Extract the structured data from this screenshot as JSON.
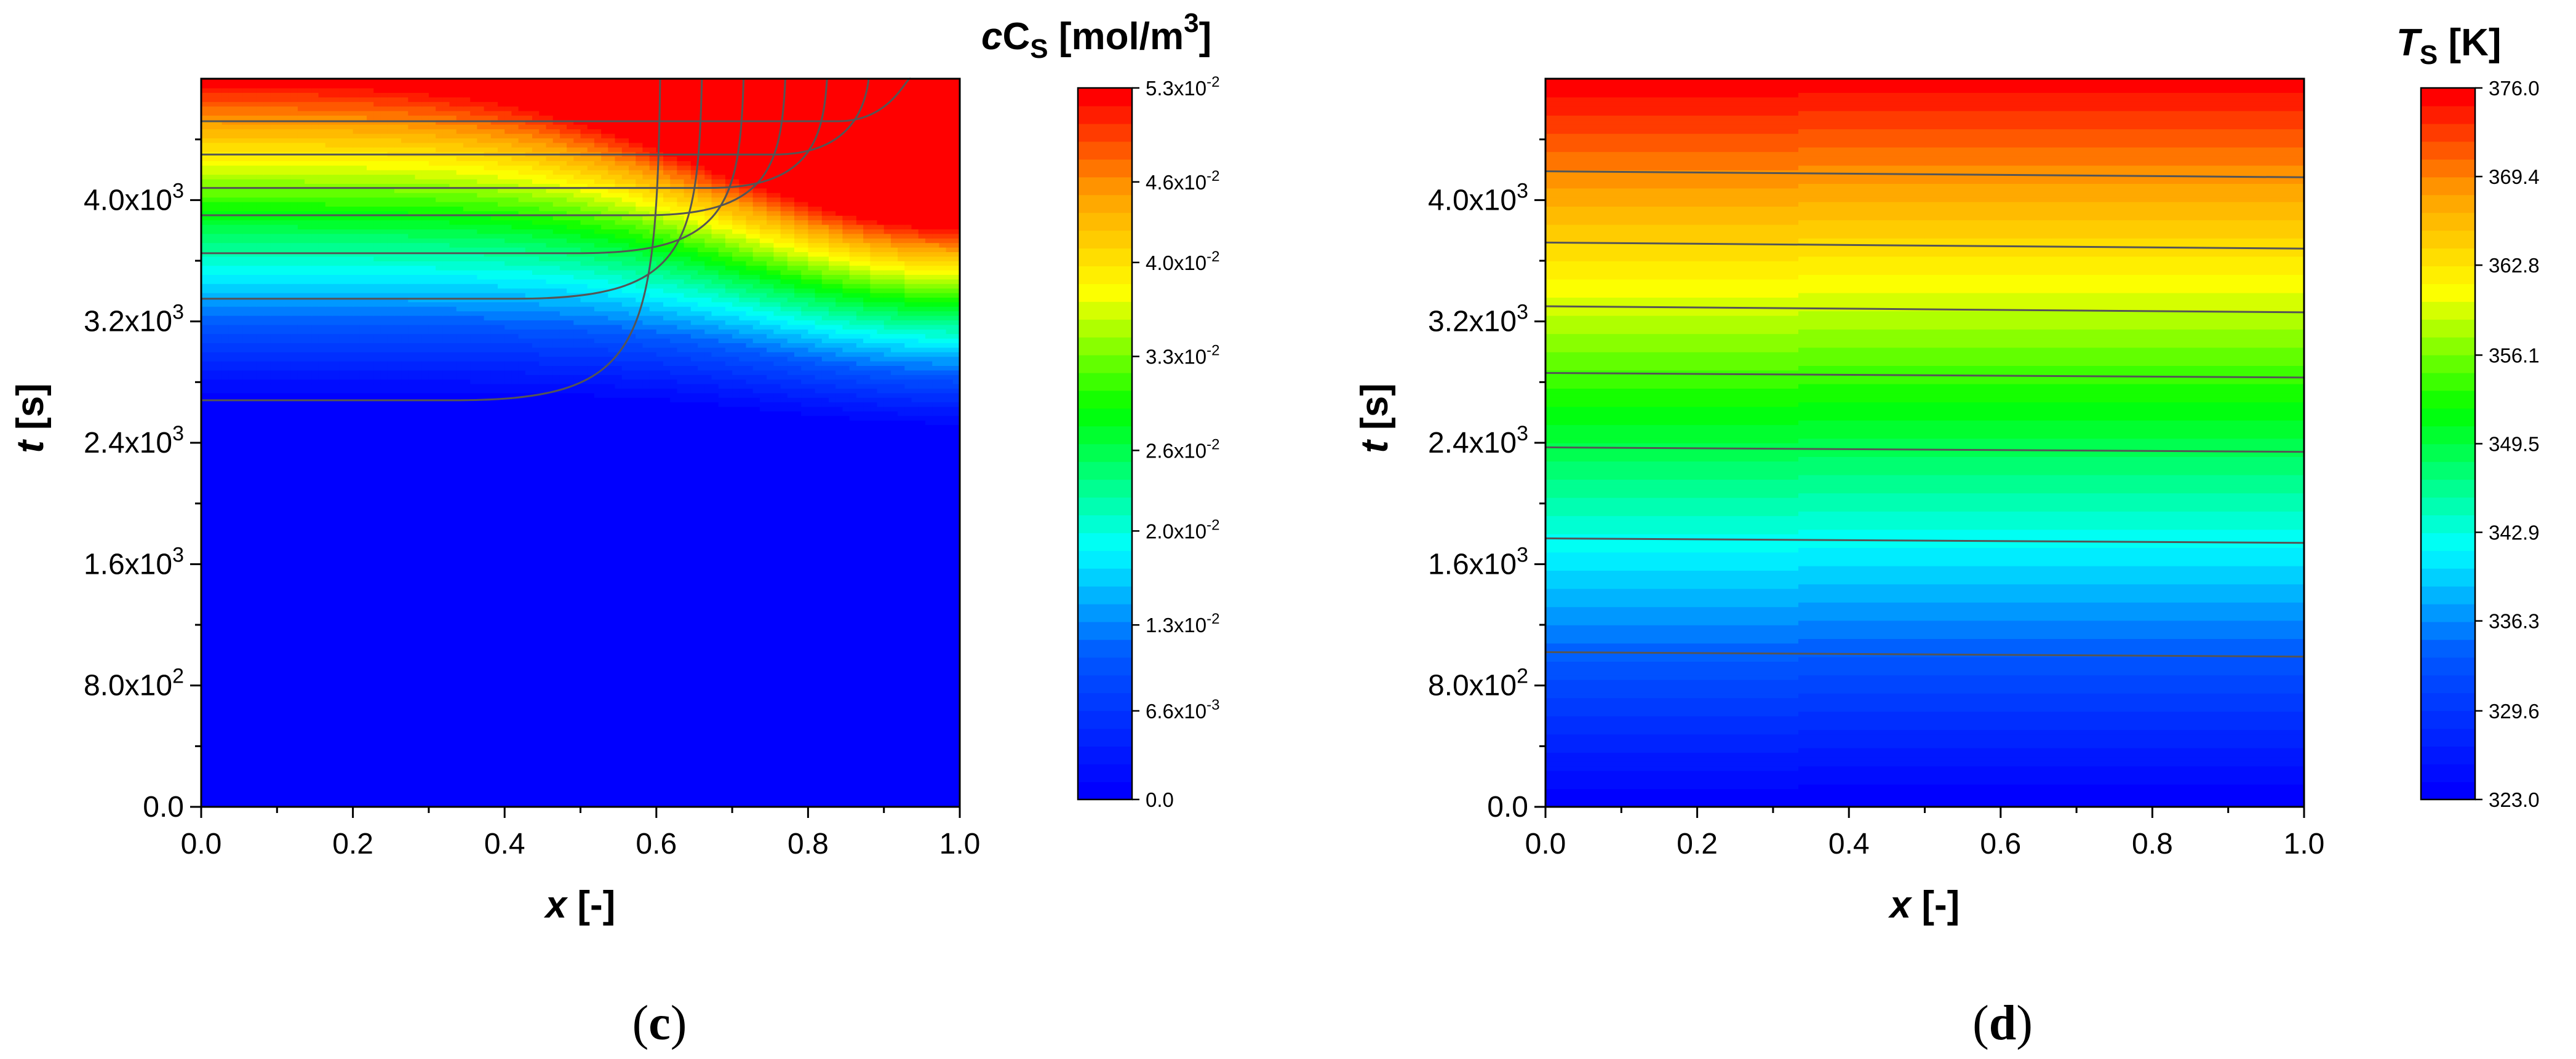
{
  "chart_data": [
    {
      "type": "heatmap",
      "panel": "c",
      "caption": "(c)",
      "caption_open": "(",
      "caption_letter": "c",
      "caption_close": ")",
      "quantity": "cC_S",
      "colorbar_title_prefix": "cC",
      "colorbar_title_sub": "S",
      "colorbar_title_unit": " [mol/m",
      "colorbar_title_exp": "3",
      "colorbar_title_end": "]",
      "xlabel_var": "x",
      "xlabel_unit": " [-]",
      "ylabel_var": "t",
      "ylabel_unit": " [s]",
      "xlim": [
        0,
        1
      ],
      "ylim": [
        0,
        4800
      ],
      "x_ticks": [
        "0.0",
        "0.2",
        "0.4",
        "0.6",
        "0.8",
        "1.0"
      ],
      "x_tick_values": [
        0,
        0.2,
        0.4,
        0.6,
        0.8,
        1.0
      ],
      "y_ticks": [
        {
          "value": 0,
          "mant": "0.0",
          "exp": ""
        },
        {
          "value": 800,
          "mant": "8.0x10",
          "exp": "2"
        },
        {
          "value": 1600,
          "mant": "1.6x10",
          "exp": "3"
        },
        {
          "value": 2400,
          "mant": "2.4x10",
          "exp": "3"
        },
        {
          "value": 3200,
          "mant": "3.2x10",
          "exp": "3"
        },
        {
          "value": 4000,
          "mant": "4.0x10",
          "exp": "3"
        }
      ],
      "colorbar_range": [
        0,
        0.053
      ],
      "colorbar_ticks": [
        {
          "value": 0.0,
          "mant": "0.0",
          "exp": ""
        },
        {
          "value": 0.0066,
          "mant": "6.6x10",
          "exp": "-3"
        },
        {
          "value": 0.013,
          "mant": "1.3x10",
          "exp": "-2"
        },
        {
          "value": 0.02,
          "mant": "2.0x10",
          "exp": "-2"
        },
        {
          "value": 0.026,
          "mant": "2.6x10",
          "exp": "-2"
        },
        {
          "value": 0.033,
          "mant": "3.3x10",
          "exp": "-2"
        },
        {
          "value": 0.04,
          "mant": "4.0x10",
          "exp": "-2"
        },
        {
          "value": 0.046,
          "mant": "4.6x10",
          "exp": "-2"
        },
        {
          "value": 0.053,
          "mant": "5.3x10",
          "exp": "-2"
        }
      ],
      "contour_levels": [
        0.0066,
        0.013,
        0.02,
        0.026,
        0.033,
        0.04,
        0.046
      ],
      "approx_onset_time_s": [
        2680,
        3350,
        3650,
        3900,
        4080,
        4300,
        4520
      ]
    },
    {
      "type": "heatmap",
      "panel": "d",
      "caption": "(d)",
      "caption_open": "(",
      "caption_letter": "d",
      "caption_close": ")",
      "quantity": "T_S",
      "colorbar_title_prefix": "T",
      "colorbar_title_sub": "S",
      "colorbar_title_unit": " [K]",
      "xlabel_var": "x",
      "xlabel_unit": " [-]",
      "ylabel_var": "t",
      "ylabel_unit": " [s]",
      "xlim": [
        0,
        1
      ],
      "ylim": [
        0,
        4800
      ],
      "x_ticks": [
        "0.0",
        "0.2",
        "0.4",
        "0.6",
        "0.8",
        "1.0"
      ],
      "x_tick_values": [
        0,
        0.2,
        0.4,
        0.6,
        0.8,
        1.0
      ],
      "y_ticks": [
        {
          "value": 0,
          "mant": "0.0",
          "exp": ""
        },
        {
          "value": 800,
          "mant": "8.0x10",
          "exp": "2"
        },
        {
          "value": 1600,
          "mant": "1.6x10",
          "exp": "3"
        },
        {
          "value": 2400,
          "mant": "2.4x10",
          "exp": "3"
        },
        {
          "value": 3200,
          "mant": "3.2x10",
          "exp": "3"
        },
        {
          "value": 4000,
          "mant": "4.0x10",
          "exp": "3"
        }
      ],
      "colorbar_range": [
        323.0,
        376.0
      ],
      "colorbar_ticks": [
        {
          "value": 323.0,
          "mant": "323.0",
          "exp": ""
        },
        {
          "value": 329.6,
          "mant": "329.6",
          "exp": ""
        },
        {
          "value": 336.3,
          "mant": "336.3",
          "exp": ""
        },
        {
          "value": 342.9,
          "mant": "342.9",
          "exp": ""
        },
        {
          "value": 349.5,
          "mant": "349.5",
          "exp": ""
        },
        {
          "value": 356.1,
          "mant": "356.1",
          "exp": ""
        },
        {
          "value": 362.8,
          "mant": "362.8",
          "exp": ""
        },
        {
          "value": 369.4,
          "mant": "369.4",
          "exp": ""
        },
        {
          "value": 376.0,
          "mant": "376.0",
          "exp": ""
        }
      ],
      "contour_levels": [
        329.6,
        336.3,
        342.9,
        349.5,
        356.1,
        362.8,
        369.4
      ],
      "contour_times_at_x0_s": [
        1020,
        1770,
        2370,
        2860,
        3300,
        3720,
        4190
      ],
      "contour_times_at_x1_s": [
        990,
        1740,
        2340,
        2830,
        3260,
        3680,
        4150
      ]
    }
  ]
}
